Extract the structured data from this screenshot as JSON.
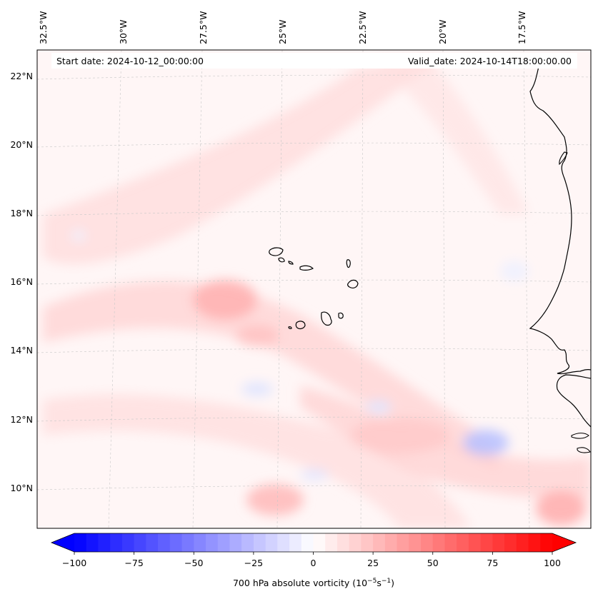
{
  "map": {
    "start_date": "Start date: 2024-10-12_00:00:00",
    "valid_date": "Valid_date: 2024-10-14T18:00:00.00",
    "lon_labels": [
      "32.5°W",
      "30°W",
      "27.5°W",
      "25°W",
      "22.5°W",
      "20°W",
      "17.5°W"
    ],
    "lat_labels": [
      "22°N",
      "20°N",
      "18°N",
      "16°N",
      "14°N",
      "12°N",
      "10°N"
    ],
    "colors": {
      "coastline": "#000000",
      "gridline": "#c8c8c8",
      "neg_max": "#0000ff",
      "zero": "#ffffff",
      "pos_max": "#ff0000"
    }
  },
  "colorbar": {
    "ticks": [
      "−100",
      "−75",
      "−50",
      "−25",
      "0",
      "25",
      "50",
      "75",
      "100"
    ],
    "tick_values": [
      -100,
      -75,
      -50,
      -25,
      0,
      25,
      50,
      75,
      100
    ],
    "label_main": "700 hPa absolute vorticity (10",
    "label_exp1": "−5",
    "label_mid": "s",
    "label_exp2": "−1",
    "label_end": ")",
    "vmin": -100,
    "vmax": 100,
    "step": 5
  }
}
